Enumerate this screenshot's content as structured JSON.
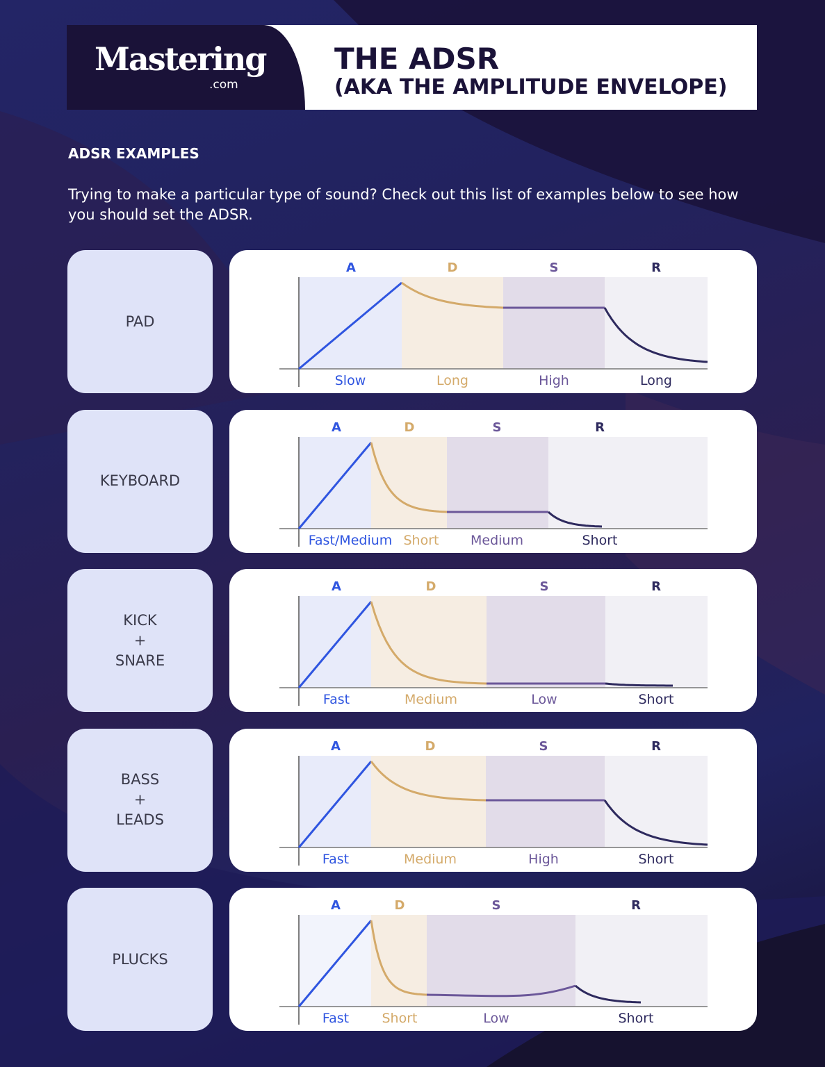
{
  "header": {
    "logo": "Mastering",
    "logo_suffix": ".com",
    "title": "THE ADSR",
    "subtitle": "(AKA THE AMPLITUDE ENVELOPE)"
  },
  "section_title": "ADSR EXAMPLES",
  "intro": "Trying to make a particular type of sound? Check out this list of examples below to see how you should set the ADSR.",
  "colors": {
    "attack": "#2f55e0",
    "decay": "#d4aa6a",
    "sustain": "#6b5799",
    "release": "#2e2a5e"
  },
  "phase_letters": [
    "A",
    "D",
    "S",
    "R"
  ],
  "examples": [
    {
      "name": "PAD",
      "attack": "Slow",
      "decay": "Long",
      "sustain": "High",
      "release": "Long"
    },
    {
      "name": "KEYBOARD",
      "attack": "Fast/Medium",
      "decay": "Short",
      "sustain": "Medium",
      "release": "Short"
    },
    {
      "name": "KICK\n+\nSNARE",
      "attack": "Fast",
      "decay": "Medium",
      "sustain": "Low",
      "release": "Short"
    },
    {
      "name": "BASS\n+\nLEADS",
      "attack": "Fast",
      "decay": "Medium",
      "sustain": "High",
      "release": "Short"
    },
    {
      "name": "PLUCKS",
      "attack": "Fast",
      "decay": "Short",
      "sustain": "Low",
      "release": "Short"
    }
  ]
}
